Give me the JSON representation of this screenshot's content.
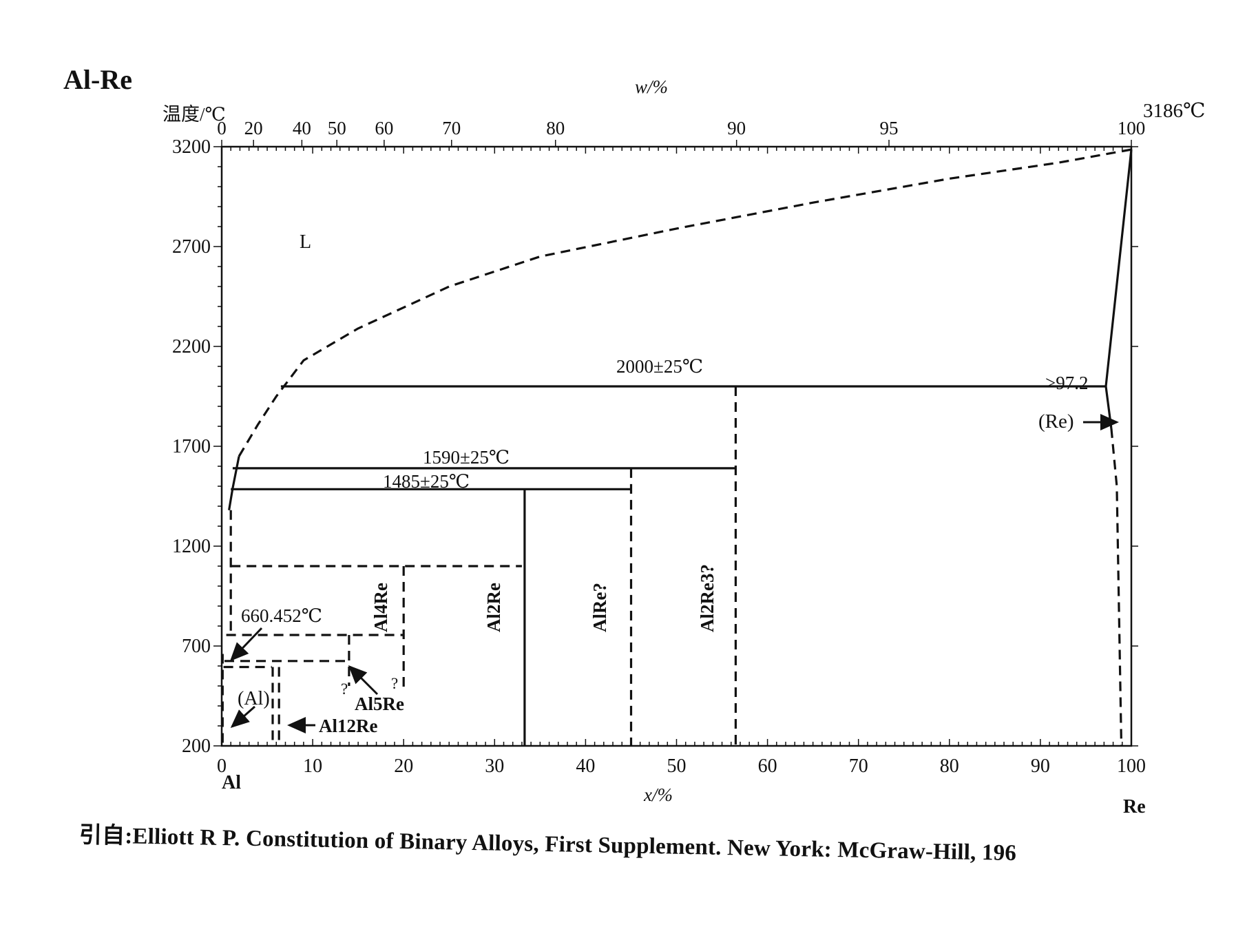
{
  "title": "Al-Re",
  "citation": "引自:Elliott R P.  Constitution of Binary Alloys, First Supplement.  New York: McGraw-Hill, 196",
  "chart_data": {
    "type": "line",
    "title": "Al-Re",
    "ylabel": "温度/℃",
    "xlabel": "x/%",
    "x2label": "w/%",
    "ylim": [
      200,
      3200
    ],
    "xlim": [
      0,
      100
    ],
    "y_ticks": [
      "200",
      "700",
      "1200",
      "1700",
      "2200",
      "2700",
      "3200"
    ],
    "x_ticks": [
      "0",
      "10",
      "20",
      "30",
      "40",
      "50",
      "60",
      "70",
      "80",
      "90",
      "100"
    ],
    "x2_ticks": [
      "0",
      "20",
      "40",
      "50",
      "60",
      "70",
      "80",
      "90",
      "95",
      "100"
    ],
    "element_left": "Al",
    "element_right": "Re",
    "phase_labels": {
      "liquid": "L",
      "al": "(Al)",
      "re": "(Re)",
      "al12re": "Al12Re",
      "al5re": "Al5Re",
      "al4re": "Al4Re",
      "al2re": "Al2Re",
      "alre": "AlRe?",
      "al2re3": "Al2Re3?"
    },
    "annotations": {
      "al_melting": "660.452℃",
      "re_melting": "3186℃",
      "peritectic_2000": "2000±25℃",
      "peritectic_1590": "1590±25℃",
      "peritectic_1485": "1485±25℃",
      "re_solubility": ">97.2",
      "q1": "?",
      "q2": "?"
    },
    "series": [
      {
        "style": "dashed",
        "x": [
          1.9,
          4,
          6,
          9,
          15,
          25,
          35,
          50,
          65,
          80,
          92,
          100
        ],
        "y": [
          1650,
          1810,
          1950,
          2130,
          2290,
          2500,
          2650,
          2790,
          2920,
          3040,
          3120,
          3186
        ]
      },
      {
        "style": "solid",
        "x": [
          0.8,
          1.2,
          1.9
        ],
        "y": [
          1380,
          1490,
          1650
        ]
      },
      {
        "style": "solid",
        "x": [
          6.5,
          97.2
        ],
        "y": [
          2000,
          2000
        ]
      },
      {
        "style": "solid",
        "x": [
          1.2,
          56.5
        ],
        "y": [
          1590,
          1590
        ]
      },
      {
        "style": "solid",
        "x": [
          1.0,
          45
        ],
        "y": [
          1485,
          1485
        ]
      },
      {
        "style": "solid",
        "x": [
          97.2,
          100
        ],
        "y": [
          2000,
          3186
        ]
      },
      {
        "style": "solid",
        "x": [
          97.2,
          97.8
        ],
        "y": [
          2000,
          1790
        ]
      },
      {
        "style": "dashed",
        "x": [
          97.8,
          98.4,
          98.9
        ],
        "y": [
          1790,
          1500,
          200
        ]
      },
      {
        "style": "solid",
        "x": [
          33.3,
          33.3
        ],
        "y": [
          1485,
          200
        ]
      },
      {
        "style": "dashed",
        "x": [
          45,
          45
        ],
        "y": [
          1590,
          200
        ]
      },
      {
        "style": "dashed",
        "x": [
          56.5,
          56.5
        ],
        "y": [
          2000,
          200
        ]
      },
      {
        "style": "dashed",
        "x": [
          1.0,
          1.0
        ],
        "y": [
          1380,
          750
        ]
      },
      {
        "style": "dashed",
        "x": [
          1.0,
          33
        ],
        "y": [
          1100,
          1100
        ]
      },
      {
        "style": "dashed",
        "x": [
          20,
          20
        ],
        "y": [
          1100,
          480
        ]
      },
      {
        "style": "dashed",
        "x": [
          0.5,
          20
        ],
        "y": [
          755,
          755
        ]
      },
      {
        "style": "dashed",
        "x": [
          0.3,
          14
        ],
        "y": [
          625,
          625
        ]
      },
      {
        "style": "dashed",
        "x": [
          14,
          14
        ],
        "y": [
          755,
          500
        ]
      },
      {
        "style": "dashed",
        "x": [
          0.2,
          5.5
        ],
        "y": [
          595,
          595
        ]
      },
      {
        "style": "dashed",
        "x": [
          5.6,
          5.6
        ],
        "y": [
          595,
          200
        ]
      },
      {
        "style": "dashed",
        "x": [
          6.3,
          6.3
        ],
        "y": [
          595,
          200
        ]
      },
      {
        "style": "dashed",
        "x": [
          0.1,
          0.1
        ],
        "y": [
          660.452,
          200
        ]
      }
    ]
  }
}
